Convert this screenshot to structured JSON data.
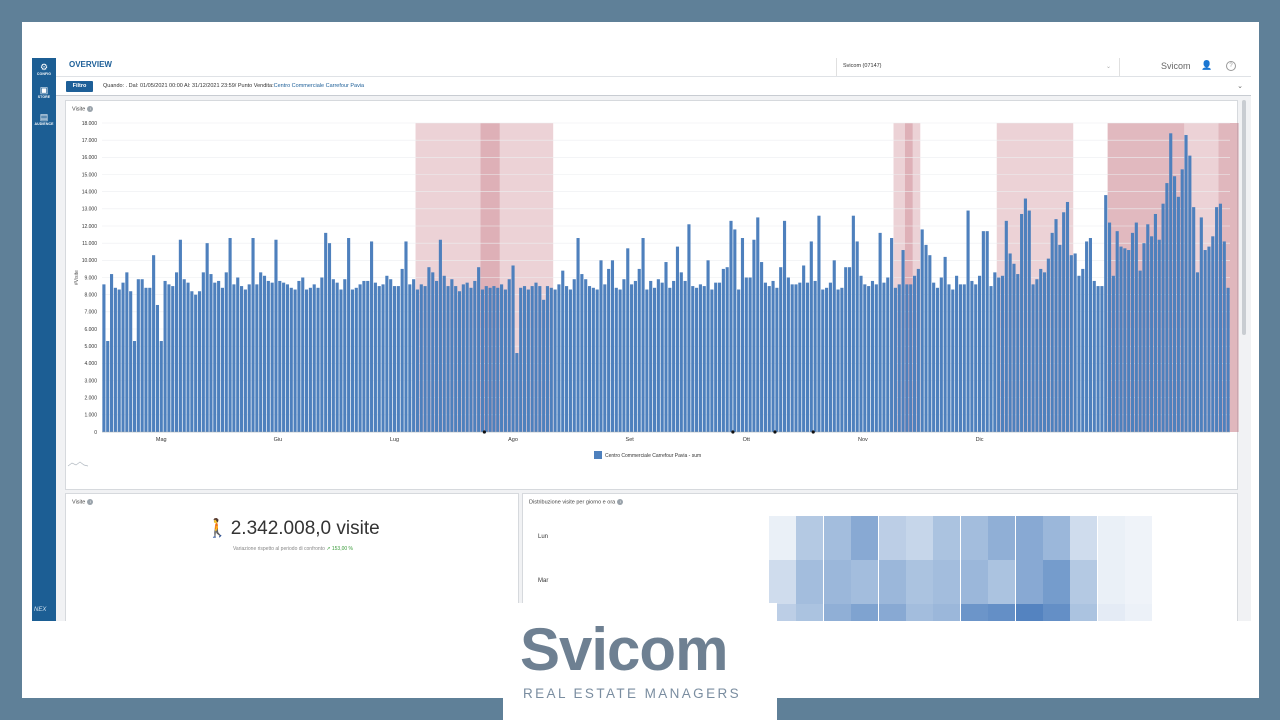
{
  "app": {
    "sidebar": [
      {
        "icon": "gear-icon",
        "label": "CONFIG"
      },
      {
        "icon": "store-icon",
        "label": "STORE"
      },
      {
        "icon": "audience-icon",
        "label": "AUDIENCE"
      }
    ],
    "sidebar_footer": "NEX",
    "title": "OVERVIEW",
    "company_selector": "Svicom (07147)",
    "user_name": "Svicom"
  },
  "filter": {
    "button_label": "Filtro",
    "text": "Quando: . Dal: 01/05/2021 00:00 Al: 31/12/2021 23:59/ Punto Vendita:",
    "store": "Centro Commerciale Carrefour Pavia"
  },
  "chart_panel": {
    "title": "Visite"
  },
  "chart_data": {
    "type": "bar",
    "ylabel": "#Visite",
    "ylim": [
      0,
      18000
    ],
    "yticks": [
      "0",
      "1.000",
      "2.000",
      "3.000",
      "4.000",
      "5.000",
      "6.000",
      "7.000",
      "8.000",
      "9.000",
      "10.000",
      "11.000",
      "12.000",
      "13.000",
      "14.000",
      "15.000",
      "16.000",
      "17.000",
      "18.000"
    ],
    "months": [
      "Mag",
      "Giu",
      "Lug",
      "Ago",
      "Set",
      "Ott",
      "Nov",
      "Dic"
    ],
    "series": [
      {
        "name": "Centro Commerciale Carrefour Pavia - sum",
        "color": "#4e80bd"
      }
    ],
    "start": "2021-05-01",
    "values": [
      8600,
      5300,
      9200,
      8400,
      8300,
      8700,
      9300,
      8200,
      5300,
      8900,
      8900,
      8400,
      8400,
      10300,
      7400,
      5300,
      8800,
      8600,
      8500,
      9300,
      11200,
      8900,
      8700,
      8200,
      8000,
      8200,
      9300,
      11000,
      9200,
      8700,
      8800,
      8400,
      9300,
      11300,
      8600,
      9000,
      8500,
      8300,
      8600,
      11300,
      8600,
      9300,
      9100,
      8800,
      8700,
      11200,
      8800,
      8700,
      8600,
      8400,
      8300,
      8800,
      9000,
      8300,
      8400,
      8600,
      8400,
      9000,
      11600,
      11000,
      8900,
      8700,
      8300,
      8900,
      11300,
      8300,
      8400,
      8600,
      8800,
      8800,
      11100,
      8700,
      8500,
      8600,
      9100,
      8900,
      8500,
      8500,
      9500,
      11100,
      8600,
      8900,
      8300,
      8600,
      8500,
      9600,
      9300,
      8800,
      11200,
      9100,
      8500,
      8900,
      8500,
      8200,
      8600,
      8700,
      8400,
      8800,
      9600,
      8300,
      8500,
      8400,
      8500,
      8400,
      8600,
      8300,
      8900,
      9700,
      4600,
      8400,
      8500,
      8300,
      8500,
      8700,
      8500,
      7700,
      8500,
      8400,
      8300,
      8600,
      9400,
      8500,
      8300,
      8900,
      11300,
      9200,
      8900,
      8500,
      8400,
      8300,
      10000,
      8600,
      9500,
      10000,
      8400,
      8300,
      8900,
      10700,
      8600,
      8800,
      9500,
      11300,
      8300,
      8800,
      8400,
      8900,
      8700,
      9900,
      8400,
      8800,
      10800,
      9300,
      8800,
      12100,
      8500,
      8400,
      8600,
      8500,
      10000,
      8300,
      8700,
      8700,
      9500,
      9600,
      12300,
      11800,
      8300,
      11300,
      9000,
      9000,
      11200,
      12500,
      9900,
      8700,
      8500,
      8800,
      8400,
      9600,
      12300,
      9000,
      8600,
      8600,
      8700,
      9700,
      8700,
      11100,
      8800,
      12600,
      8300,
      8400,
      8700,
      10000,
      8300,
      8400,
      9600,
      9600,
      12600,
      11100,
      9100,
      8600,
      8500,
      8800,
      8600,
      11600,
      8700,
      9000,
      11300,
      8400,
      8600,
      10600,
      8600,
      8600,
      9100,
      9500,
      11800,
      10900,
      10300,
      8700,
      8400,
      9000,
      10200,
      8600,
      8300,
      9100,
      8600,
      8600,
      12900,
      8800,
      8600,
      9100,
      11700,
      11700,
      8500,
      9300,
      9000,
      9100,
      12300,
      10400,
      9800,
      9200,
      12700,
      13600,
      12900,
      8600,
      8900,
      9500,
      9300,
      10100,
      11600,
      12400,
      10900,
      12800,
      13400,
      10300,
      10400,
      9100,
      9500,
      11100,
      11300,
      8800,
      8500,
      8500,
      13800,
      12200,
      9100,
      11700,
      10800,
      10700,
      10600,
      11600,
      12200,
      9400,
      11000,
      12100,
      11400,
      12700,
      11200,
      13300,
      14500,
      17400,
      14900,
      13700,
      15300,
      17300,
      16100,
      13100,
      9300,
      12500,
      10600,
      10800,
      11400,
      13100,
      13300,
      11100,
      8400
    ],
    "highlight_months_red": true
  },
  "kpi": {
    "title": "Visite",
    "value": "2.342.008,0 visite",
    "subtitle": "Variazione rispetto al periodo di confronto",
    "change": "153,00 %"
  },
  "heatmap": {
    "title": "Distribuzione visite per giorno e ora",
    "rows": [
      {
        "label": "Lun",
        "values": [
          0.05,
          0.35,
          0.45,
          0.6,
          0.3,
          0.25,
          0.4,
          0.45,
          0.55,
          0.6,
          0.5,
          0.2,
          0.05,
          0.02
        ]
      },
      {
        "label": "Mar",
        "values": [
          0.2,
          0.45,
          0.5,
          0.45,
          0.5,
          0.4,
          0.45,
          0.5,
          0.4,
          0.6,
          0.7,
          0.35,
          0.05,
          0.02
        ]
      },
      {
        "label": "",
        "values": [
          0.3,
          0.4,
          0.55,
          0.65,
          0.6,
          0.45,
          0.5,
          0.75,
          0.8,
          0.9,
          0.8,
          0.4,
          0.08,
          0.04
        ]
      }
    ]
  },
  "logo": {
    "name": "Svicom",
    "tagline": "REAL ESTATE MANAGERS"
  }
}
